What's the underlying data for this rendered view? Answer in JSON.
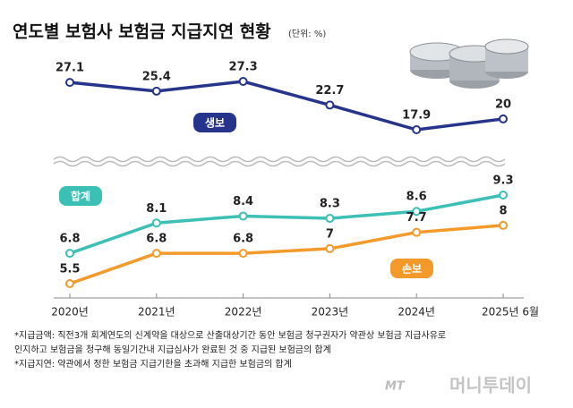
{
  "chart_data": {
    "type": "line",
    "title": "연도별 보험사 보험금 지급지연 현황",
    "subtitle": "(단위: %)",
    "categories": [
      "2020년",
      "2021년",
      "2022년",
      "2023년",
      "2024년",
      "2025년 6월"
    ],
    "series": [
      {
        "name": "생보",
        "color": "#27348b",
        "axis": "y2",
        "values": [
          27.1,
          25.4,
          27.3,
          22.7,
          17.9,
          20
        ]
      },
      {
        "name": "합계",
        "color": "#3cbfb4",
        "values": [
          6.8,
          8.1,
          8.4,
          8.3,
          8.6,
          9.3
        ]
      },
      {
        "name": "손보",
        "color": "#f39a2b",
        "values": [
          5.5,
          6.8,
          6.8,
          7,
          7.7,
          8
        ]
      }
    ],
    "notes": [
      "*지급금액: 직전3개 회계연도의 신계약을 대상으로 산출대상기간 동안 보험금 청구권자가 약관상 보험금 지급사유로",
      "인지하고 보험금을 청구해 동일기간내 지급심사가 완료된 것 중 지급된 보험금의 합계",
      "*지급지연: 약관에서 정한 보험금 지급기한을 초과해 지급한 보험금의 합계"
    ],
    "watermark": [
      "MT",
      "머니투데이"
    ]
  }
}
